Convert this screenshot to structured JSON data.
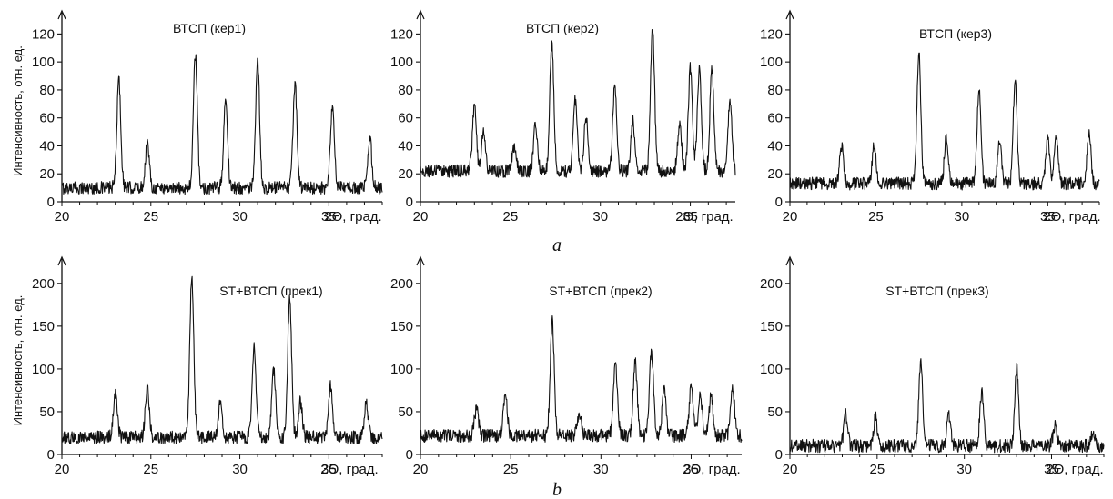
{
  "figure": {
    "row_labels": [
      "a",
      "b"
    ],
    "y_axis_label": "Интенсивность, отн. ед.",
    "x_axis_label": "2Θ, град."
  },
  "chart_data": [
    {
      "type": "line",
      "title": "ВТСП (кер1)",
      "xlabel": "2Θ, град.",
      "ylabel": "Интенсивность, отн. ед.",
      "xlim": [
        20,
        38
      ],
      "ylim": [
        0,
        130
      ],
      "xticks": [
        20,
        25,
        30,
        35
      ],
      "yticks": [
        0,
        20,
        40,
        60,
        80,
        100,
        120
      ],
      "grid": false,
      "series": [
        {
          "baseline": 10,
          "peaks": [
            [
              23.2,
              87
            ],
            [
              24.8,
              42
            ],
            [
              27.5,
              105
            ],
            [
              29.2,
              72
            ],
            [
              31.0,
              100
            ],
            [
              33.1,
              84
            ],
            [
              35.2,
              67
            ],
            [
              37.3,
              46
            ]
          ]
        }
      ]
    },
    {
      "type": "line",
      "title": "ВТСП (кер2)",
      "xlabel": "2Θ, град.",
      "ylabel": "",
      "xlim": [
        20,
        37.5
      ],
      "ylim": [
        0,
        130
      ],
      "xticks": [
        20,
        25,
        30,
        35
      ],
      "yticks": [
        0,
        20,
        40,
        60,
        80,
        100,
        120
      ],
      "grid": false,
      "series": [
        {
          "baseline": 22,
          "peaks": [
            [
              23.0,
              67
            ],
            [
              23.5,
              50
            ],
            [
              25.2,
              40
            ],
            [
              26.4,
              55
            ],
            [
              27.3,
              114
            ],
            [
              28.6,
              72
            ],
            [
              29.2,
              60
            ],
            [
              30.8,
              84
            ],
            [
              31.8,
              58
            ],
            [
              32.9,
              126
            ],
            [
              34.4,
              55
            ],
            [
              35.0,
              96
            ],
            [
              35.5,
              95
            ],
            [
              36.2,
              96
            ],
            [
              37.2,
              70
            ]
          ]
        }
      ]
    },
    {
      "type": "line",
      "title": "ВТСП (кер3)",
      "xlabel": "2Θ, град.",
      "ylabel": "",
      "xlim": [
        20,
        38
      ],
      "ylim": [
        0,
        130
      ],
      "xticks": [
        20,
        25,
        30,
        35
      ],
      "yticks": [
        0,
        20,
        40,
        60,
        80,
        100,
        120
      ],
      "grid": false,
      "series": [
        {
          "baseline": 13,
          "peaks": [
            [
              23.0,
              40
            ],
            [
              24.9,
              40
            ],
            [
              27.5,
              107
            ],
            [
              29.1,
              48
            ],
            [
              31.0,
              82
            ],
            [
              32.2,
              45
            ],
            [
              33.1,
              88
            ],
            [
              35.0,
              45
            ],
            [
              35.5,
              48
            ],
            [
              37.4,
              51
            ]
          ]
        }
      ]
    },
    {
      "type": "line",
      "title": "ST+ВТСП (прек1)",
      "xlabel": "2Θ, град.",
      "ylabel": "Интенсивность, отн. ед.",
      "xlim": [
        20,
        38
      ],
      "ylim": [
        0,
        220
      ],
      "xticks": [
        20,
        25,
        30,
        35
      ],
      "yticks": [
        0,
        50,
        100,
        150,
        200
      ],
      "grid": false,
      "series": [
        {
          "baseline": 20,
          "peaks": [
            [
              23.0,
              72
            ],
            [
              24.8,
              80
            ],
            [
              27.3,
              208
            ],
            [
              28.9,
              60
            ],
            [
              30.8,
              128
            ],
            [
              31.9,
              100
            ],
            [
              32.8,
              183
            ],
            [
              33.4,
              62
            ],
            [
              35.1,
              80
            ],
            [
              37.1,
              60
            ]
          ]
        }
      ]
    },
    {
      "type": "line",
      "title": "ST+ВТСП (прек2)",
      "xlabel": "2Θ, град.",
      "ylabel": "",
      "xlim": [
        20,
        37.8
      ],
      "ylim": [
        0,
        220
      ],
      "xticks": [
        20,
        25,
        30,
        35
      ],
      "yticks": [
        0,
        50,
        100,
        150,
        200
      ],
      "grid": false,
      "series": [
        {
          "baseline": 22,
          "peaks": [
            [
              23.1,
              53
            ],
            [
              24.7,
              68
            ],
            [
              27.3,
              155
            ],
            [
              28.8,
              48
            ],
            [
              30.8,
              107
            ],
            [
              31.9,
              109
            ],
            [
              32.8,
              121
            ],
            [
              33.5,
              75
            ],
            [
              35.0,
              77
            ],
            [
              35.5,
              70
            ],
            [
              36.1,
              67
            ],
            [
              37.3,
              75
            ]
          ]
        }
      ]
    },
    {
      "type": "line",
      "title": "ST+ВТСП (прек3)",
      "xlabel": "2Θ, град.",
      "ylabel": "",
      "xlim": [
        20,
        38
      ],
      "ylim": [
        0,
        220
      ],
      "xticks": [
        20,
        25,
        30,
        35
      ],
      "yticks": [
        0,
        50,
        100,
        150,
        200
      ],
      "grid": false,
      "series": [
        {
          "baseline": 10,
          "peaks": [
            [
              23.2,
              46
            ],
            [
              24.9,
              43
            ],
            [
              27.5,
              107
            ],
            [
              29.1,
              45
            ],
            [
              31.0,
              73
            ],
            [
              33.0,
              100
            ],
            [
              35.2,
              35
            ],
            [
              37.4,
              27
            ]
          ]
        }
      ]
    }
  ]
}
